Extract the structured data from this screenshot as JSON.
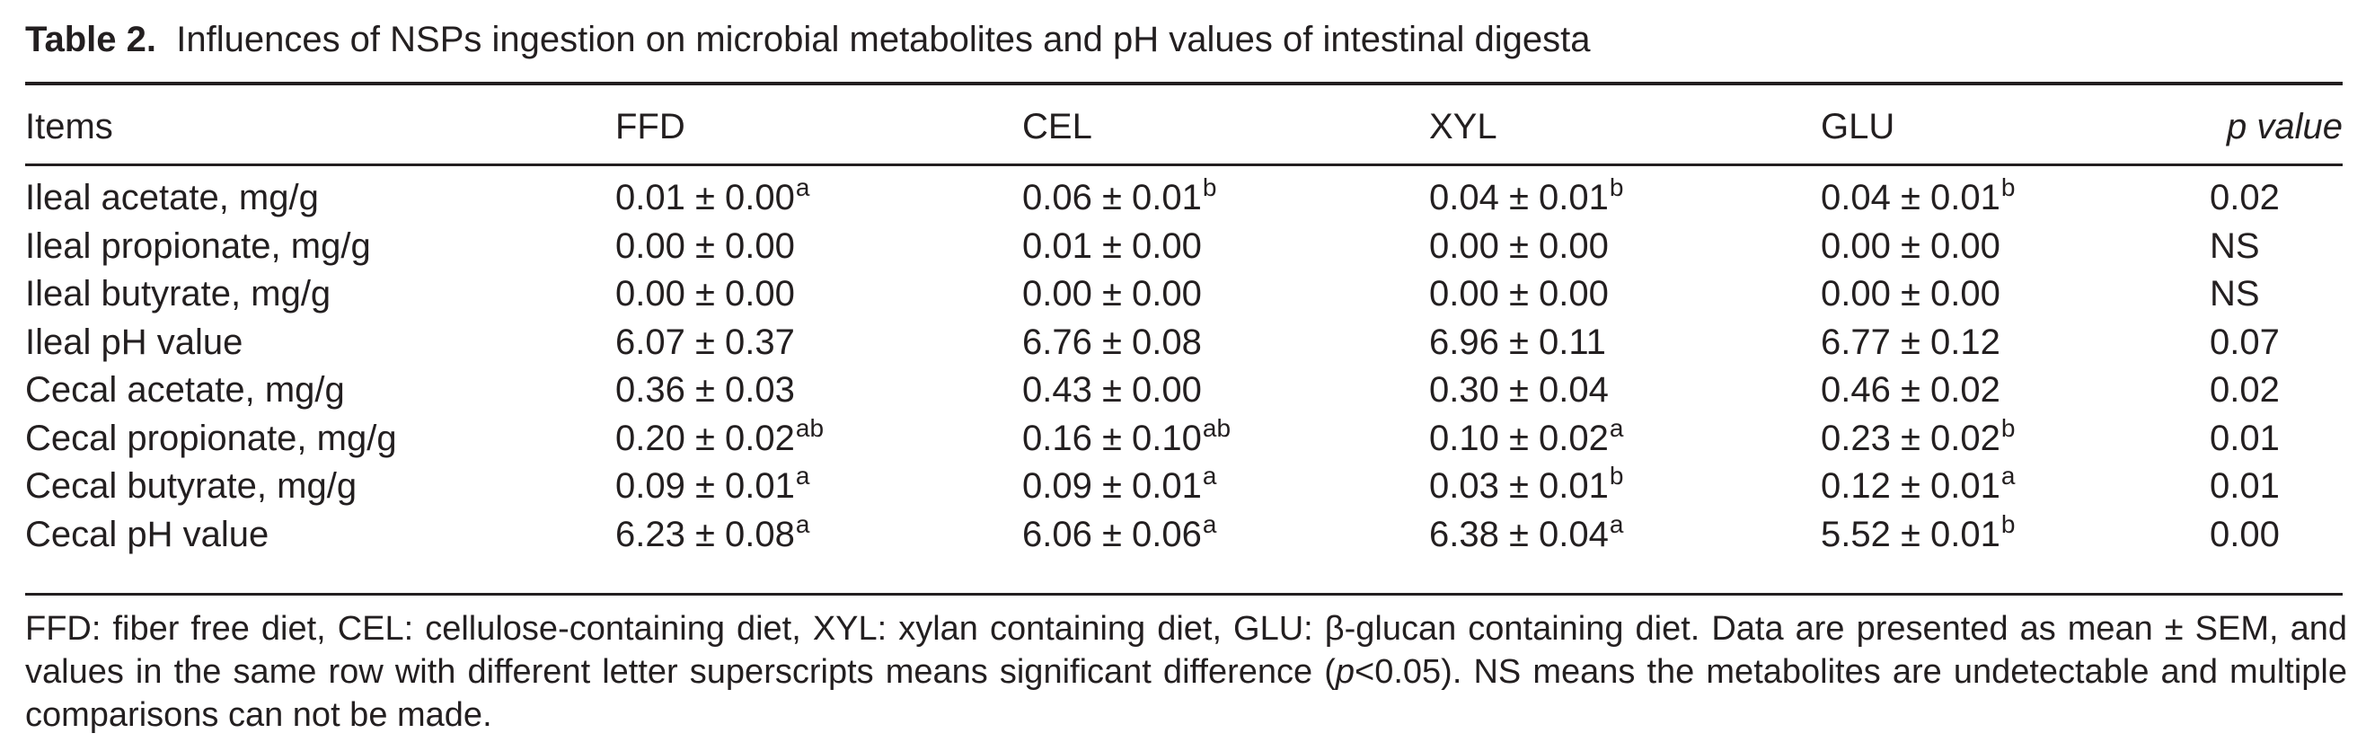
{
  "caption": {
    "label": "Table 2.",
    "text": "Influences of NSPs ingestion on microbial metabolites and pH values of intestinal digesta"
  },
  "table": {
    "headers": [
      "Items",
      "FFD",
      "CEL",
      "XYL",
      "GLU",
      "p value"
    ],
    "rows": [
      {
        "item": "Ileal acetate, mg/g",
        "cells": [
          {
            "v": "0.01 ± 0.00",
            "s": "a"
          },
          {
            "v": "0.06 ± 0.01",
            "s": "b"
          },
          {
            "v": "0.04 ± 0.01",
            "s": "b"
          },
          {
            "v": "0.04 ± 0.01",
            "s": "b"
          }
        ],
        "p": "0.02"
      },
      {
        "item": "Ileal propionate, mg/g",
        "cells": [
          {
            "v": "0.00 ± 0.00",
            "s": ""
          },
          {
            "v": "0.01 ± 0.00",
            "s": ""
          },
          {
            "v": "0.00 ± 0.00",
            "s": ""
          },
          {
            "v": "0.00 ± 0.00",
            "s": ""
          }
        ],
        "p": "NS"
      },
      {
        "item": "Ileal butyrate, mg/g",
        "cells": [
          {
            "v": "0.00 ± 0.00",
            "s": ""
          },
          {
            "v": "0.00 ± 0.00",
            "s": ""
          },
          {
            "v": "0.00 ± 0.00",
            "s": ""
          },
          {
            "v": "0.00 ± 0.00",
            "s": ""
          }
        ],
        "p": "NS"
      },
      {
        "item": "Ileal pH value",
        "cells": [
          {
            "v": "6.07 ± 0.37",
            "s": ""
          },
          {
            "v": "6.76 ± 0.08",
            "s": ""
          },
          {
            "v": "6.96 ± 0.11",
            "s": ""
          },
          {
            "v": "6.77 ± 0.12",
            "s": ""
          }
        ],
        "p": "0.07"
      },
      {
        "item": "Cecal acetate, mg/g",
        "cells": [
          {
            "v": "0.36 ± 0.03",
            "s": ""
          },
          {
            "v": "0.43 ± 0.00",
            "s": ""
          },
          {
            "v": "0.30 ± 0.04",
            "s": ""
          },
          {
            "v": "0.46 ± 0.02",
            "s": ""
          }
        ],
        "p": "0.02"
      },
      {
        "item": "Cecal propionate, mg/g",
        "cells": [
          {
            "v": "0.20 ± 0.02",
            "s": "ab"
          },
          {
            "v": "0.16 ± 0.10",
            "s": "ab"
          },
          {
            "v": "0.10 ± 0.02",
            "s": "a"
          },
          {
            "v": "0.23 ± 0.02",
            "s": "b"
          }
        ],
        "p": "0.01"
      },
      {
        "item": "Cecal butyrate, mg/g",
        "cells": [
          {
            "v": "0.09 ± 0.01",
            "s": "a"
          },
          {
            "v": "0.09 ± 0.01",
            "s": "a"
          },
          {
            "v": "0.03 ± 0.01",
            "s": "b"
          },
          {
            "v": "0.12 ± 0.01",
            "s": "a"
          }
        ],
        "p": "0.01"
      },
      {
        "item": "Cecal pH value",
        "cells": [
          {
            "v": "6.23 ± 0.08",
            "s": "a"
          },
          {
            "v": "6.06 ± 0.06",
            "s": "a"
          },
          {
            "v": "6.38 ± 0.04",
            "s": "a"
          },
          {
            "v": "5.52 ± 0.01",
            "s": "b"
          }
        ],
        "p": "0.00"
      }
    ]
  },
  "footnote": {
    "part1": "FFD: fiber free diet, CEL: cellulose-containing diet, XYL: xylan containing diet, GLU: β-glucan containing diet. Data are presented as mean ± SEM, and values in the same row with different letter superscripts means significant difference (",
    "p_symbol": "p",
    "part2": "<0.05). NS means the metabolites are undetectable and multiple comparisons can not be made."
  }
}
